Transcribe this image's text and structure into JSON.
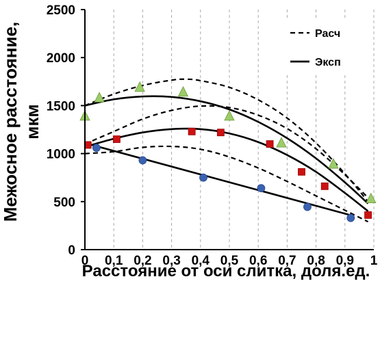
{
  "chart_data": {
    "type": "scatter",
    "xlabel": "Расстояние от оси слитка, доля.ед.",
    "ylabel_line1": "Межосное расстояние,",
    "ylabel_line2": "мкм",
    "xlim": [
      0,
      1
    ],
    "ylim": [
      0,
      2500
    ],
    "x_ticks": [
      "0",
      "0,1",
      "0,2",
      "0,3",
      "0,4",
      "0,5",
      "0,6",
      "0,7",
      "0,8",
      "0,9",
      "1"
    ],
    "y_ticks": [
      "0",
      "500",
      "1000",
      "1500",
      "2000",
      "2500"
    ],
    "grid": "vertical",
    "legend_position": "top-right",
    "legend": [
      {
        "label": "Расч",
        "style": "dashed"
      },
      {
        "label": "Эксп",
        "style": "solid"
      }
    ],
    "series": [
      {
        "marker": "triangle",
        "color": "#9ccc6a",
        "stroke": "#6a9a3a",
        "points": [
          [
            0.0,
            1390
          ],
          [
            0.05,
            1580
          ],
          [
            0.19,
            1690
          ],
          [
            0.34,
            1640
          ],
          [
            0.5,
            1390
          ],
          [
            0.68,
            1110
          ],
          [
            0.86,
            890
          ],
          [
            0.99,
            530
          ]
        ]
      },
      {
        "marker": "square",
        "color": "#cc1111",
        "stroke": "#990000",
        "points": [
          [
            0.01,
            1090
          ],
          [
            0.11,
            1150
          ],
          [
            0.37,
            1230
          ],
          [
            0.47,
            1220
          ],
          [
            0.64,
            1100
          ],
          [
            0.75,
            810
          ],
          [
            0.83,
            660
          ],
          [
            0.98,
            360
          ]
        ]
      },
      {
        "marker": "circle",
        "color": "#3a62b0",
        "stroke": "#2a4a90",
        "points": [
          [
            0.04,
            1060
          ],
          [
            0.2,
            930
          ],
          [
            0.41,
            750
          ],
          [
            0.61,
            640
          ],
          [
            0.77,
            445
          ],
          [
            0.92,
            330
          ]
        ]
      }
    ],
    "fitted_lines": [
      {
        "style": "solid",
        "x": [
          0.0,
          0.1,
          0.2,
          0.3,
          0.4,
          0.5,
          0.6,
          0.7,
          0.8,
          0.9,
          0.98
        ],
        "y": [
          1500,
          1565,
          1595,
          1590,
          1545,
          1460,
          1330,
          1160,
          950,
          700,
          480
        ]
      },
      {
        "style": "solid",
        "x": [
          0.0,
          0.1,
          0.2,
          0.3,
          0.4,
          0.5,
          0.6,
          0.7,
          0.8,
          0.9,
          0.98
        ],
        "y": [
          1070,
          1155,
          1220,
          1255,
          1255,
          1210,
          1120,
          985,
          810,
          590,
          400
        ]
      },
      {
        "style": "solid",
        "x": [
          0.0,
          0.93
        ],
        "y": [
          1110,
          350
        ]
      },
      {
        "style": "dashed",
        "x": [
          0.0,
          0.1,
          0.2,
          0.3,
          0.35,
          0.4,
          0.5,
          0.6,
          0.7,
          0.8,
          0.9,
          0.98
        ],
        "y": [
          1500,
          1620,
          1710,
          1765,
          1775,
          1760,
          1690,
          1560,
          1370,
          1110,
          790,
          500
        ]
      },
      {
        "style": "dashed",
        "x": [
          0.0,
          0.1,
          0.2,
          0.3,
          0.4,
          0.5,
          0.6,
          0.7,
          0.8,
          0.9,
          0.98
        ],
        "y": [
          1100,
          1230,
          1360,
          1450,
          1495,
          1480,
          1400,
          1260,
          1050,
          780,
          540
        ]
      },
      {
        "style": "dashed",
        "x": [
          0.0,
          0.1,
          0.2,
          0.3,
          0.4,
          0.5,
          0.6,
          0.7,
          0.8,
          0.9,
          0.98
        ],
        "y": [
          1000,
          1020,
          1065,
          1075,
          1045,
          965,
          850,
          710,
          560,
          410,
          290
        ]
      }
    ]
  }
}
